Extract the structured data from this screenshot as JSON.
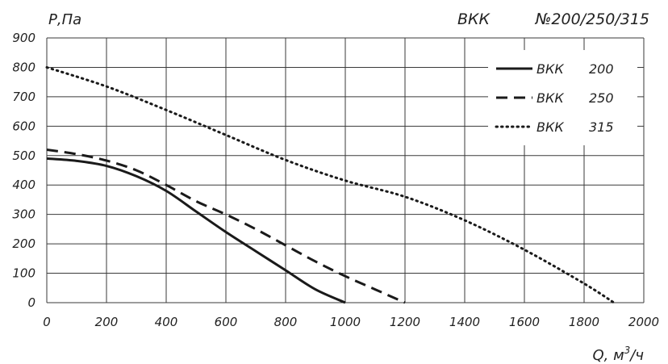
{
  "header": {
    "model": "ВКК",
    "sizes": "№200/250/315"
  },
  "chart_data": {
    "type": "line",
    "ylabel": "Р,Па",
    "xlabel_prefix": "Q, м",
    "xlabel_sup": "3",
    "xlabel_suffix": "/ч",
    "xlim": [
      0,
      2000
    ],
    "ylim": [
      0,
      900
    ],
    "xticks": [
      0,
      200,
      400,
      600,
      800,
      1000,
      1200,
      1400,
      1600,
      1800,
      2000
    ],
    "yticks": [
      0,
      100,
      200,
      300,
      400,
      500,
      600,
      700,
      800,
      900
    ],
    "grid": true,
    "legend_position": "top-right",
    "series": [
      {
        "name": "ВКК 200",
        "legend_model": "ВКК",
        "legend_size": "200",
        "style": "solid",
        "x": [
          0,
          100,
          200,
          300,
          400,
          500,
          600,
          700,
          800,
          900,
          1000
        ],
        "y": [
          490,
          482,
          465,
          430,
          380,
          310,
          240,
          175,
          110,
          45,
          0
        ]
      },
      {
        "name": "ВКК 250",
        "legend_model": "ВКК",
        "legend_size": "250",
        "style": "dashed",
        "x": [
          0,
          100,
          200,
          300,
          400,
          500,
          600,
          700,
          800,
          900,
          1000,
          1100,
          1200
        ],
        "y": [
          520,
          505,
          483,
          450,
          400,
          345,
          300,
          250,
          195,
          140,
          90,
          45,
          0
        ]
      },
      {
        "name": "ВКК 315",
        "legend_model": "ВКК",
        "legend_size": "315",
        "style": "dotted",
        "x": [
          0,
          200,
          400,
          600,
          800,
          1000,
          1200,
          1400,
          1600,
          1800,
          1900
        ],
        "y": [
          800,
          735,
          655,
          570,
          485,
          415,
          360,
          280,
          180,
          65,
          0
        ]
      }
    ]
  }
}
